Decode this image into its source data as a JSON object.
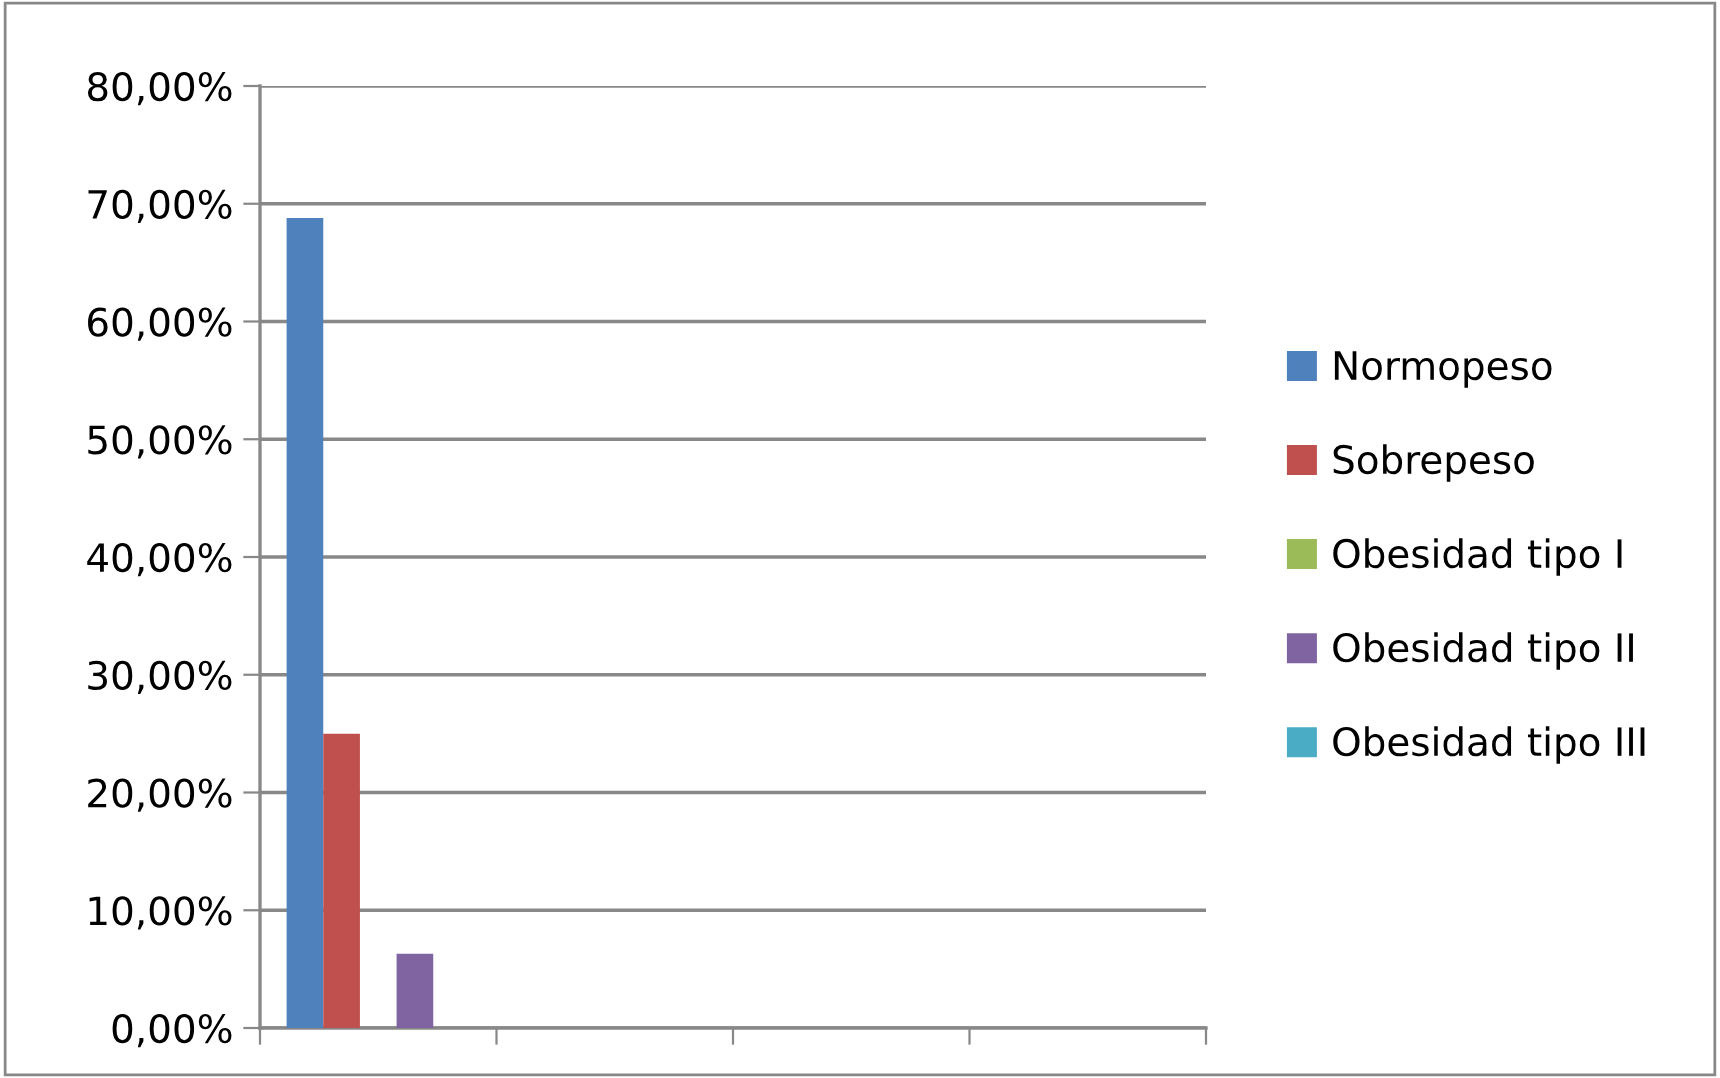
{
  "chart_data": {
    "type": "bar",
    "categories": [
      null,
      null,
      null,
      null
    ],
    "series": [
      {
        "name": "Normopeso",
        "color": "#4f81bd",
        "values": [
          68.8,
          null,
          null,
          null
        ]
      },
      {
        "name": "Sobrepeso",
        "color": "#c0504d",
        "values": [
          25,
          null,
          null,
          null
        ]
      },
      {
        "name": "Obesidad tipo I",
        "color": "#9bbb59",
        "values": [
          0,
          null,
          null,
          null
        ]
      },
      {
        "name": "Obesidad tipo II",
        "color": "#8064a2",
        "values": [
          6.3,
          null,
          null,
          null
        ]
      },
      {
        "name": "Obesidad tipo III",
        "color": "#4bacc6",
        "values": [
          0,
          null,
          null,
          null
        ]
      }
    ],
    "ylim": [
      0,
      80
    ],
    "yticks": [
      {
        "value": 0,
        "label": "0,00%"
      },
      {
        "value": 10,
        "label": "10,00%"
      },
      {
        "value": 20,
        "label": "20,00%"
      },
      {
        "value": 30,
        "label": "30,00%"
      },
      {
        "value": 40,
        "label": "40,00%"
      },
      {
        "value": 50,
        "label": "50,00%"
      },
      {
        "value": 60,
        "label": "60,00%"
      },
      {
        "value": 70,
        "label": "70,00%"
      },
      {
        "value": 80,
        "label": "80,00%"
      }
    ],
    "grid": "y",
    "legend": "right"
  }
}
